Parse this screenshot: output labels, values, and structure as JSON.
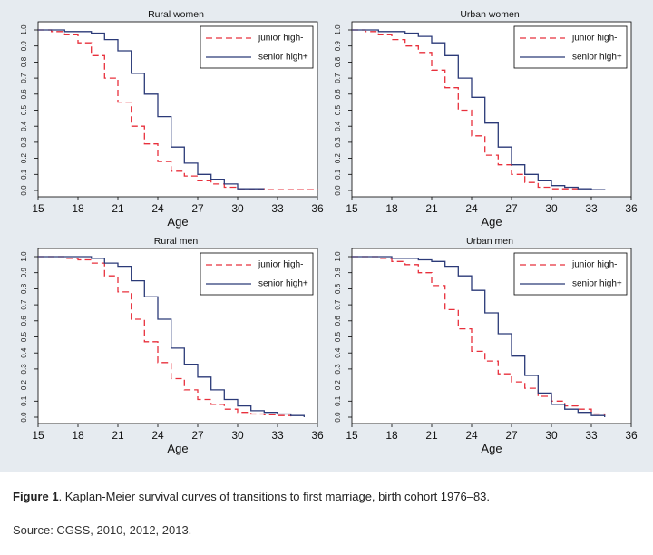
{
  "caption": {
    "label": "Figure 1",
    "text": ". Kaplan-Meier survival curves of transitions to first marriage, birth cohort 1976–83."
  },
  "source": "Source: CGSS, 2010, 2012, 2013.",
  "colors": {
    "junior": "#e8303c",
    "senior": "#2b3a78",
    "panel_bg": "#ffffff",
    "figure_bg": "#e6ebf0"
  },
  "chart_data": [
    {
      "type": "line",
      "title": "Rural women",
      "xlabel": "Age",
      "ylabel": "",
      "xlim": [
        15,
        36
      ],
      "ylim": [
        0,
        1
      ],
      "xticks": [
        15,
        18,
        21,
        24,
        27,
        30,
        33,
        36
      ],
      "yticks": [
        "0.0",
        "0.1",
        "0.2",
        "0.3",
        "0.4",
        "0.5",
        "0.6",
        "0.7",
        "0.8",
        "0.9",
        "1.0"
      ],
      "legend": "top-right",
      "series": [
        {
          "name": "junior high-",
          "style": "dashed",
          "x": [
            15,
            16,
            17,
            18,
            19,
            20,
            21,
            22,
            23,
            24,
            25,
            26,
            27,
            28,
            29,
            30,
            31,
            32,
            36
          ],
          "y": [
            1.0,
            0.99,
            0.97,
            0.92,
            0.84,
            0.7,
            0.55,
            0.4,
            0.29,
            0.18,
            0.12,
            0.09,
            0.06,
            0.04,
            0.02,
            0.01,
            0.01,
            0.005,
            0.0
          ]
        },
        {
          "name": "senior high+",
          "style": "solid",
          "x": [
            15,
            17,
            18,
            19,
            20,
            21,
            22,
            23,
            24,
            25,
            26,
            27,
            28,
            29,
            30,
            32
          ],
          "y": [
            1.0,
            0.99,
            0.99,
            0.98,
            0.94,
            0.87,
            0.73,
            0.6,
            0.46,
            0.27,
            0.17,
            0.1,
            0.07,
            0.04,
            0.01,
            0.01
          ]
        }
      ]
    },
    {
      "type": "line",
      "title": "Urban women",
      "xlabel": "Age",
      "ylabel": "",
      "xlim": [
        15,
        36
      ],
      "ylim": [
        0,
        1
      ],
      "xticks": [
        15,
        18,
        21,
        24,
        27,
        30,
        33,
        36
      ],
      "yticks": [
        "0.0",
        "0.1",
        "0.2",
        "0.3",
        "0.4",
        "0.5",
        "0.6",
        "0.7",
        "0.8",
        "0.9",
        "1.0"
      ],
      "legend": "top-right",
      "series": [
        {
          "name": "junior high-",
          "style": "dashed",
          "x": [
            15,
            16,
            17,
            18,
            19,
            20,
            21,
            22,
            23,
            24,
            25,
            26,
            27,
            28,
            29,
            30,
            31,
            32
          ],
          "y": [
            1.0,
            0.99,
            0.97,
            0.94,
            0.9,
            0.86,
            0.75,
            0.64,
            0.5,
            0.34,
            0.22,
            0.16,
            0.1,
            0.05,
            0.02,
            0.01,
            0.01,
            0.005
          ]
        },
        {
          "name": "senior high+",
          "style": "solid",
          "x": [
            15,
            17,
            18,
            19,
            20,
            21,
            22,
            23,
            24,
            25,
            26,
            27,
            28,
            29,
            30,
            31,
            32,
            33,
            34
          ],
          "y": [
            1.0,
            0.99,
            0.99,
            0.98,
            0.96,
            0.92,
            0.84,
            0.7,
            0.58,
            0.42,
            0.27,
            0.16,
            0.1,
            0.06,
            0.03,
            0.02,
            0.01,
            0.005,
            0.0
          ]
        }
      ]
    },
    {
      "type": "line",
      "title": "Rural men",
      "xlabel": "Age",
      "ylabel": "",
      "xlim": [
        15,
        36
      ],
      "ylim": [
        0,
        1
      ],
      "xticks": [
        15,
        18,
        21,
        24,
        27,
        30,
        33,
        36
      ],
      "yticks": [
        "0.0",
        "0.1",
        "0.2",
        "0.3",
        "0.4",
        "0.5",
        "0.6",
        "0.7",
        "0.8",
        "0.9",
        "1.0"
      ],
      "legend": "top-right",
      "series": [
        {
          "name": "junior high-",
          "style": "dashed",
          "x": [
            15,
            17,
            18,
            19,
            20,
            21,
            22,
            23,
            24,
            25,
            26,
            27,
            28,
            29,
            30,
            31,
            32,
            33,
            34
          ],
          "y": [
            1.0,
            0.99,
            0.98,
            0.96,
            0.88,
            0.78,
            0.61,
            0.47,
            0.34,
            0.24,
            0.17,
            0.11,
            0.08,
            0.05,
            0.03,
            0.02,
            0.015,
            0.01,
            0.005
          ]
        },
        {
          "name": "senior high+",
          "style": "solid",
          "x": [
            15,
            17,
            18,
            19,
            20,
            21,
            22,
            23,
            24,
            25,
            26,
            27,
            28,
            29,
            30,
            31,
            32,
            33,
            34,
            35
          ],
          "y": [
            1.0,
            1.0,
            1.0,
            0.99,
            0.96,
            0.94,
            0.85,
            0.75,
            0.61,
            0.43,
            0.33,
            0.25,
            0.17,
            0.11,
            0.07,
            0.04,
            0.03,
            0.02,
            0.01,
            0.0
          ]
        }
      ]
    },
    {
      "type": "line",
      "title": "Urban men",
      "xlabel": "Age",
      "ylabel": "",
      "xlim": [
        15,
        36
      ],
      "ylim": [
        0,
        1
      ],
      "xticks": [
        15,
        18,
        21,
        24,
        27,
        30,
        33,
        36
      ],
      "yticks": [
        "0.0",
        "0.1",
        "0.2",
        "0.3",
        "0.4",
        "0.5",
        "0.6",
        "0.7",
        "0.8",
        "0.9",
        "1.0"
      ],
      "legend": "top-right",
      "series": [
        {
          "name": "junior high-",
          "style": "dashed",
          "x": [
            15,
            17,
            18,
            19,
            20,
            21,
            22,
            23,
            24,
            25,
            26,
            27,
            28,
            29,
            30,
            31,
            32,
            33,
            34
          ],
          "y": [
            1.0,
            0.99,
            0.97,
            0.95,
            0.9,
            0.82,
            0.67,
            0.55,
            0.41,
            0.35,
            0.27,
            0.22,
            0.18,
            0.13,
            0.1,
            0.07,
            0.05,
            0.02,
            0.01
          ]
        },
        {
          "name": "senior high+",
          "style": "solid",
          "x": [
            15,
            17,
            18,
            19,
            20,
            21,
            22,
            23,
            24,
            25,
            26,
            27,
            28,
            29,
            30,
            31,
            32,
            33,
            34
          ],
          "y": [
            1.0,
            1.0,
            0.99,
            0.99,
            0.98,
            0.97,
            0.94,
            0.88,
            0.79,
            0.65,
            0.52,
            0.38,
            0.26,
            0.15,
            0.08,
            0.05,
            0.03,
            0.01,
            0.0
          ]
        }
      ]
    }
  ]
}
